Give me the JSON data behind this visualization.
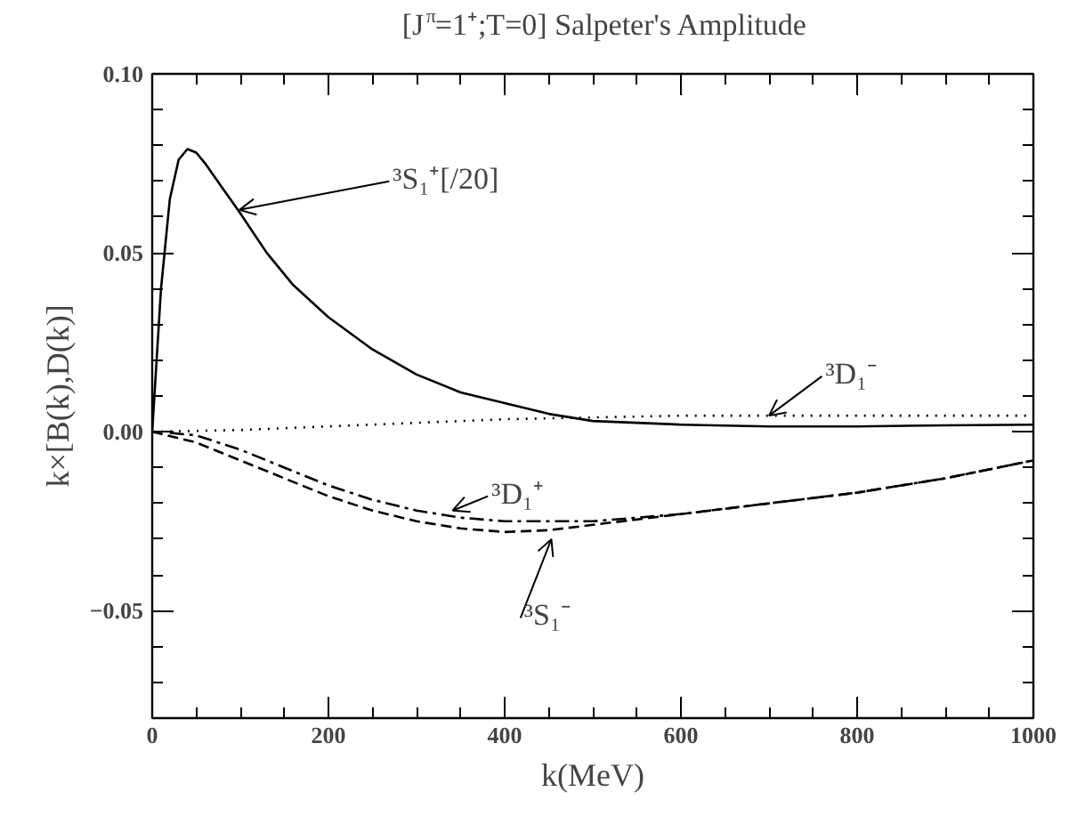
{
  "chart_data": {
    "type": "line",
    "title": "[J$^{π}$=1⁺;T=0] Salpeter's Amplitude",
    "xlabel": "k(MeV)",
    "ylabel": "k×[B(k),D(k)]",
    "xlim": [
      0,
      1000
    ],
    "xticks": [
      0,
      200,
      400,
      600,
      800,
      1000
    ],
    "ylim": [
      -0.08,
      0.1
    ],
    "yticks": [
      {
        "value": -0.05,
        "label": "−0.05"
      },
      {
        "value": 0,
        "label": "0.00"
      },
      {
        "value": 0.05,
        "label": "0.05"
      },
      {
        "value": 0.1,
        "label": "0.10"
      }
    ],
    "grid": false,
    "marker": "none",
    "series": [
      {
        "color": "#000000",
        "line_style": "solid",
        "x": [
          0,
          5,
          10,
          20,
          30,
          40,
          50,
          60,
          80,
          100,
          130,
          160,
          200,
          250,
          300,
          350,
          400,
          450,
          500,
          600,
          700,
          800,
          900,
          1000
        ],
        "values": [
          0,
          0.02,
          0.04,
          0.065,
          0.076,
          0.079,
          0.078,
          0.075,
          0.068,
          0.061,
          0.05,
          0.041,
          0.032,
          0.023,
          0.016,
          0.011,
          0.008,
          0.005,
          0.003,
          0.002,
          0.0015,
          0.0015,
          0.0018,
          0.002
        ]
      },
      {
        "color": "#000000",
        "line_style": "dotted",
        "x": [
          0,
          100,
          200,
          300,
          400,
          500,
          600,
          800,
          1000
        ],
        "values": [
          0,
          0.0005,
          0.0015,
          0.0025,
          0.0035,
          0.004,
          0.0045,
          0.0045,
          0.0045
        ]
      },
      {
        "color": "#000000",
        "line_style": "dashdot",
        "x": [
          20,
          50,
          100,
          150,
          200,
          250,
          300,
          350,
          400,
          450,
          500,
          600,
          700,
          800,
          900,
          1000
        ],
        "values": [
          -0.0003,
          -0.001,
          -0.005,
          -0.01,
          -0.015,
          -0.019,
          -0.022,
          -0.024,
          -0.025,
          -0.025,
          -0.025,
          -0.023,
          -0.02,
          -0.017,
          -0.013,
          -0.008
        ]
      },
      {
        "color": "#000000",
        "line_style": "dashed",
        "x": [
          0,
          50,
          100,
          150,
          200,
          250,
          300,
          350,
          400,
          450,
          500,
          600,
          700,
          800,
          900,
          1000
        ],
        "values": [
          0,
          -0.003,
          -0.008,
          -0.013,
          -0.018,
          -0.022,
          -0.025,
          -0.027,
          -0.028,
          -0.0275,
          -0.026,
          -0.023,
          -0.02,
          -0.017,
          -0.013,
          -0.008
        ]
      }
    ],
    "annotations": [
      {
        "text": "³S₁⁺[/20]",
        "x": 99,
        "y": 0.062
      },
      {
        "text": "³D₁⁻",
        "x": 700,
        "y": 0.0045
      },
      {
        "text": "³D₁⁺",
        "x": 341,
        "y": -0.022
      },
      {
        "text": "³S₁⁻",
        "x": 453,
        "y": -0.03
      }
    ]
  }
}
